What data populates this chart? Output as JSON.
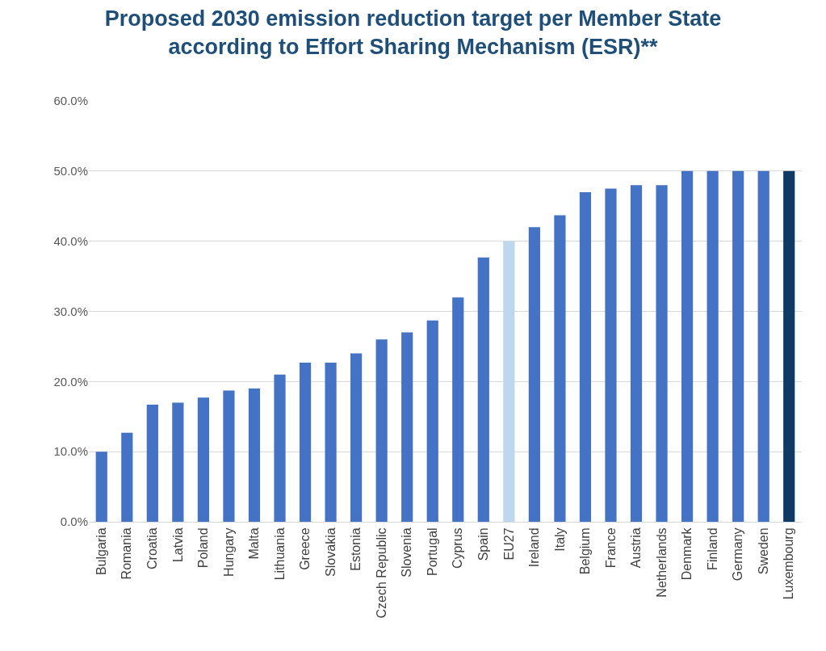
{
  "chart_data": {
    "type": "bar",
    "title": "Proposed 2030 emission reduction target per Member State\naccording to Effort Sharing Mechanism (ESR)**",
    "categories": [
      "Bulgaria",
      "Romania",
      "Croatia",
      "Latvia",
      "Poland",
      "Hungary",
      "Malta",
      "Lithuania",
      "Greece",
      "Slovakia",
      "Estonia",
      "Czech Republic",
      "Slovenia",
      "Portugal",
      "Cyprus",
      "Spain",
      "EU27",
      "Ireland",
      "Italy",
      "Belgium",
      "France",
      "Austria",
      "Netherlands",
      "Denmark",
      "Finland",
      "Germany",
      "Sweden",
      "Luxembourg"
    ],
    "values": [
      10,
      12.7,
      16.7,
      17,
      17.7,
      18.7,
      19,
      21,
      22.7,
      22.7,
      24,
      26,
      27,
      28.7,
      32,
      37.7,
      40,
      42,
      43.7,
      47,
      47.5,
      48,
      48,
      50,
      50,
      50,
      50,
      50
    ],
    "colors": [
      "#4472c4",
      "#4472c4",
      "#4472c4",
      "#4472c4",
      "#4472c4",
      "#4472c4",
      "#4472c4",
      "#4472c4",
      "#4472c4",
      "#4472c4",
      "#4472c4",
      "#4472c4",
      "#4472c4",
      "#4472c4",
      "#4472c4",
      "#4472c4",
      "#bdd7ee",
      "#4472c4",
      "#4472c4",
      "#4472c4",
      "#4472c4",
      "#4472c4",
      "#4472c4",
      "#4472c4",
      "#4472c4",
      "#4472c4",
      "#4472c4",
      "#0e3a63"
    ],
    "ylim": [
      0,
      60
    ],
    "yticks": [
      {
        "value": 0,
        "label": "0.0%"
      },
      {
        "value": 10,
        "label": "10.0%"
      },
      {
        "value": 20,
        "label": "20.0%"
      },
      {
        "value": 30,
        "label": "30.0%"
      },
      {
        "value": 40,
        "label": "40.0%"
      },
      {
        "value": 50,
        "label": "50.0%"
      },
      {
        "value": 60,
        "label": "60.0%"
      }
    ],
    "grid": "y"
  }
}
